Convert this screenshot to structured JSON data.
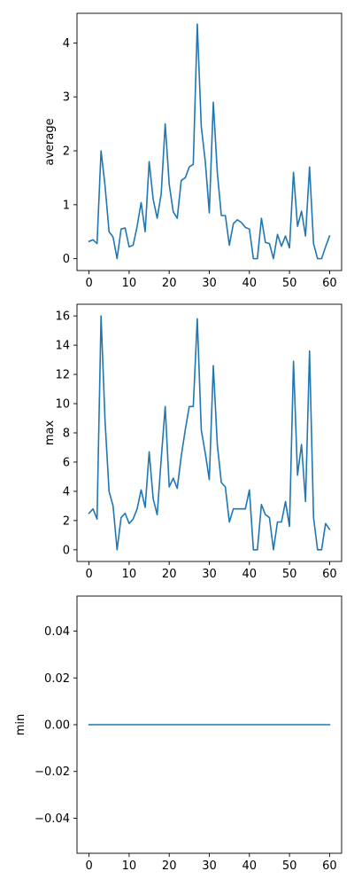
{
  "chart_data": [
    {
      "type": "line",
      "title": "",
      "xlabel": "",
      "ylabel": "average",
      "xlim": [
        -3,
        63
      ],
      "ylim": [
        -0.22,
        4.55
      ],
      "xticks": [
        0,
        10,
        20,
        30,
        40,
        50,
        60
      ],
      "yticks": [
        0,
        1,
        2,
        3,
        4
      ],
      "ytick_labels": [
        "0",
        "1",
        "2",
        "3",
        "4"
      ],
      "color": "#1f77b4",
      "x": [
        0,
        1,
        2,
        3,
        4,
        5,
        6,
        7,
        8,
        9,
        10,
        11,
        12,
        13,
        14,
        15,
        16,
        17,
        18,
        19,
        20,
        21,
        22,
        23,
        24,
        25,
        26,
        27,
        28,
        29,
        30,
        31,
        32,
        33,
        34,
        35,
        36,
        37,
        38,
        39,
        40,
        41,
        42,
        43,
        44,
        45,
        46,
        47,
        48,
        49,
        50,
        51,
        52,
        53,
        54,
        55,
        56,
        57,
        58,
        59,
        60
      ],
      "y": [
        0.32,
        0.35,
        0.28,
        2.0,
        1.35,
        0.5,
        0.4,
        0.0,
        0.55,
        0.57,
        0.22,
        0.25,
        0.6,
        1.04,
        0.5,
        1.8,
        1.1,
        0.75,
        1.2,
        2.5,
        1.38,
        0.87,
        0.75,
        1.45,
        1.5,
        1.7,
        1.75,
        4.35,
        2.45,
        1.8,
        0.85,
        2.9,
        1.6,
        0.8,
        0.8,
        0.25,
        0.65,
        0.72,
        0.67,
        0.58,
        0.55,
        0.0,
        0.0,
        0.75,
        0.3,
        0.28,
        0.0,
        0.45,
        0.23,
        0.42,
        0.2,
        1.6,
        0.6,
        0.88,
        0.42,
        1.7,
        0.28,
        0.0,
        0.0,
        0.22,
        0.42
      ]
    },
    {
      "type": "line",
      "title": "",
      "xlabel": "",
      "ylabel": "max",
      "xlim": [
        -3,
        63
      ],
      "ylim": [
        -0.8,
        16.8
      ],
      "xticks": [
        0,
        10,
        20,
        30,
        40,
        50,
        60
      ],
      "yticks": [
        0,
        2,
        4,
        6,
        8,
        10,
        12,
        14,
        16
      ],
      "ytick_labels": [
        "0",
        "2",
        "4",
        "6",
        "8",
        "10",
        "12",
        "14",
        "16"
      ],
      "color": "#1f77b4",
      "x": [
        0,
        1,
        2,
        3,
        4,
        5,
        6,
        7,
        8,
        9,
        10,
        11,
        12,
        13,
        14,
        15,
        16,
        17,
        18,
        19,
        20,
        21,
        22,
        23,
        24,
        25,
        26,
        27,
        28,
        29,
        30,
        31,
        32,
        33,
        34,
        35,
        36,
        37,
        38,
        39,
        40,
        41,
        42,
        43,
        44,
        45,
        46,
        47,
        48,
        49,
        50,
        51,
        52,
        53,
        54,
        55,
        56,
        57,
        58,
        59,
        60
      ],
      "y": [
        2.5,
        2.8,
        2.1,
        16.0,
        8.8,
        4.0,
        3.0,
        0.0,
        2.2,
        2.5,
        1.8,
        2.1,
        2.8,
        4.1,
        2.9,
        6.7,
        3.5,
        2.4,
        6.2,
        9.8,
        4.3,
        4.9,
        4.2,
        6.4,
        8.2,
        9.8,
        9.8,
        15.8,
        8.2,
        6.6,
        4.8,
        12.6,
        7.2,
        4.6,
        4.3,
        1.9,
        2.8,
        2.8,
        2.8,
        2.8,
        4.1,
        0.0,
        0.0,
        3.1,
        2.4,
        2.2,
        0.0,
        1.9,
        1.9,
        3.3,
        1.6,
        12.9,
        5.1,
        7.2,
        3.3,
        13.6,
        2.2,
        0.0,
        0.0,
        1.8,
        1.4
      ]
    },
    {
      "type": "line",
      "title": "",
      "xlabel": "",
      "ylabel": "min",
      "xlim": [
        -3,
        63
      ],
      "ylim": [
        -0.055,
        0.055
      ],
      "xticks": [
        0,
        10,
        20,
        30,
        40,
        50,
        60
      ],
      "yticks": [
        -0.04,
        -0.02,
        0.0,
        0.02,
        0.04
      ],
      "ytick_labels": [
        "−0.04",
        "−0.02",
        "0.00",
        "0.02",
        "0.04"
      ],
      "color": "#1f77b4",
      "x": [
        0,
        1,
        2,
        3,
        4,
        5,
        6,
        7,
        8,
        9,
        10,
        11,
        12,
        13,
        14,
        15,
        16,
        17,
        18,
        19,
        20,
        21,
        22,
        23,
        24,
        25,
        26,
        27,
        28,
        29,
        30,
        31,
        32,
        33,
        34,
        35,
        36,
        37,
        38,
        39,
        40,
        41,
        42,
        43,
        44,
        45,
        46,
        47,
        48,
        49,
        50,
        51,
        52,
        53,
        54,
        55,
        56,
        57,
        58,
        59,
        60
      ],
      "y": [
        0,
        0,
        0,
        0,
        0,
        0,
        0,
        0,
        0,
        0,
        0,
        0,
        0,
        0,
        0,
        0,
        0,
        0,
        0,
        0,
        0,
        0,
        0,
        0,
        0,
        0,
        0,
        0,
        0,
        0,
        0,
        0,
        0,
        0,
        0,
        0,
        0,
        0,
        0,
        0,
        0,
        0,
        0,
        0,
        0,
        0,
        0,
        0,
        0,
        0,
        0,
        0,
        0,
        0,
        0,
        0,
        0,
        0,
        0,
        0,
        0
      ]
    }
  ]
}
